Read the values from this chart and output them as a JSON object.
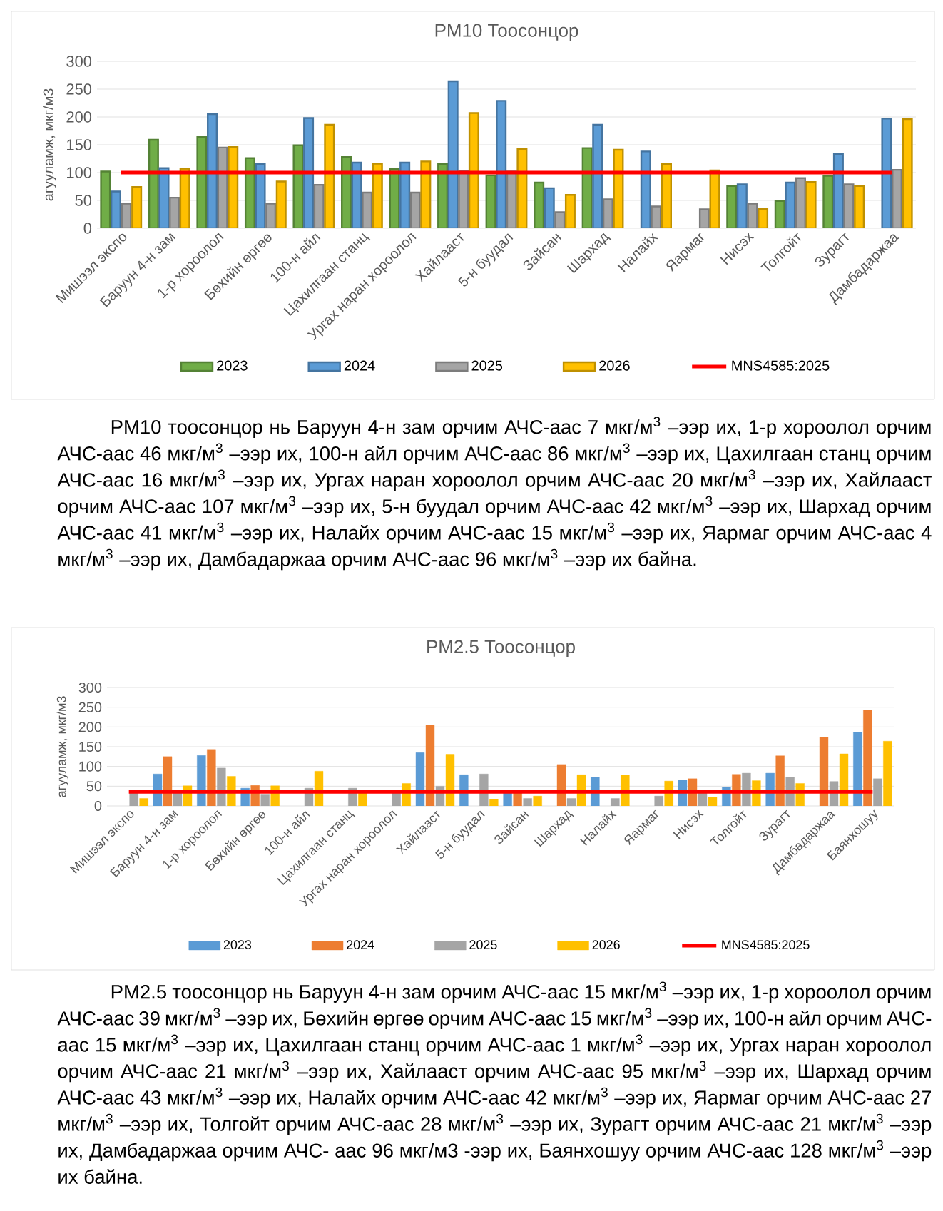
{
  "chart_data": [
    {
      "type": "bar",
      "title": "PM10 Тоосонцор",
      "ylabel": "агууламж, мкг/м3",
      "categories": [
        "Мишээл экспо",
        "Баруун 4-н зам",
        "1-р хороолол",
        "Бөхийн өргөө",
        "100-н айл",
        "Цахилгаан станц",
        "Ургах наран хороолол",
        "Хайлааст",
        "5-н буудал",
        "Зайсан",
        "Шархад",
        "Налайх",
        "Яармаг",
        "Нисэх",
        "Толгойт",
        "Зурагт",
        "Дамбадаржаа"
      ],
      "series": [
        {
          "name": "2023",
          "color": "#70ad47",
          "values": [
            102,
            159,
            164,
            126,
            149,
            128,
            106,
            115,
            95,
            82,
            144,
            null,
            null,
            76,
            49,
            94,
            null
          ]
        },
        {
          "name": "2024",
          "color": "#5b9bd5",
          "values": [
            66,
            108,
            205,
            115,
            198,
            118,
            118,
            264,
            229,
            72,
            186,
            138,
            null,
            79,
            82,
            133,
            197
          ]
        },
        {
          "name": "2025",
          "color": "#a5a5a5",
          "values": [
            44,
            55,
            145,
            44,
            78,
            64,
            64,
            103,
            102,
            29,
            52,
            39,
            34,
            44,
            90,
            79,
            105
          ]
        },
        {
          "name": "2026",
          "color": "#ffc000",
          "values": [
            74,
            107,
            146,
            84,
            186,
            116,
            120,
            207,
            142,
            60,
            141,
            115,
            104,
            35,
            83,
            76,
            196
          ]
        },
        {
          "name": "MNS4585:2025",
          "type": "line",
          "color": "#ff0000",
          "values": [
            100,
            100,
            100,
            100,
            100,
            100,
            100,
            100,
            100,
            100,
            100,
            100,
            100,
            100,
            100,
            100,
            100
          ]
        }
      ],
      "ylim": [
        0,
        300
      ],
      "yticks": [
        0,
        50,
        100,
        150,
        200,
        250,
        300
      ],
      "grid": "y",
      "legend": "bottom",
      "annotations": [
        "PM10 тоосонцор нь Баруун 4-н зам орчим АЧС-аас 7 мкг/м$^{3}$ –ээр их, 1-р хороолол орчим АЧС-аас 46 мкг/м$^{3}$ –ээр их, 100-н айл орчим АЧС-аас 86 мкг/м$^{3}$ –ээр их, Цахилгаан станц орчим АЧС-аас 16 мкг/м$^{3}$ –ээр их, Ургах наран хороолол орчим АЧС-аас 20 мкг/м$^{3}$ –ээр их, Хайлааст орчим АЧС-аас 107 мкг/м$^{3}$ –ээр их, 5-н буудал орчим АЧС-аас 42 мкг/м$^{3}$ –ээр их, Шархад орчим АЧС-аас 41 мкг/м$^{3}$ –ээр их, Налайх орчим АЧС-аас 15 мкг/м$^{3}$ –ээр их, Яармаг орчим АЧС-аас 4 мкг/м$^{3}$ –ээр их, Дамбадаржаа орчим АЧС-аас 96 мкг/м$^{3}$ –ээр их байна."
      ]
    },
    {
      "type": "bar",
      "title": "PM2.5 Тоосонцор",
      "ylabel": "агууламж, мкг/м3",
      "categories": [
        "Мишээл экспо",
        "Баруун 4-н зам",
        "1-р хороолол",
        "Бөхийн өргөө",
        "100-н айл",
        "Цахилгаан станц",
        "Ургах наран хороолол",
        "Хайлааст",
        "5-н буудал",
        "Зайсан",
        "Шархад",
        "Налайх",
        "Яармаг",
        "Нисэх",
        "Толгойт",
        "Зурагт",
        "Дамбадаржаа",
        "Баянхошуу"
      ],
      "series": [
        {
          "name": "2023",
          "color": "#5b9bd5",
          "values": [
            null,
            81,
            128,
            45,
            null,
            null,
            null,
            135,
            79,
            39,
            null,
            73,
            null,
            65,
            47,
            83,
            null,
            186
          ]
        },
        {
          "name": "2024",
          "color": "#ed7d31",
          "values": [
            null,
            125,
            143,
            52,
            null,
            null,
            null,
            204,
            null,
            39,
            105,
            null,
            null,
            69,
            80,
            127,
            174,
            243
          ]
        },
        {
          "name": "2025",
          "color": "#a5a5a5",
          "values": [
            37,
            37,
            96,
            28,
            45,
            45,
            37,
            50,
            81,
            19,
            19,
            19,
            25,
            33,
            83,
            73,
            62,
            69
          ]
        },
        {
          "name": "2026",
          "color": "#ffc000",
          "values": [
            19,
            51,
            75,
            51,
            88,
            37,
            57,
            131,
            17,
            25,
            79,
            78,
            63,
            22,
            64,
            57,
            132,
            164
          ]
        },
        {
          "name": "MNS4585:2025",
          "type": "line",
          "color": "#ff0000",
          "values": [
            36,
            36,
            36,
            36,
            36,
            36,
            36,
            36,
            36,
            36,
            36,
            36,
            36,
            36,
            36,
            36,
            36,
            36
          ]
        }
      ],
      "ylim": [
        0,
        300
      ],
      "yticks": [
        0,
        50,
        100,
        150,
        200,
        250,
        300
      ],
      "grid": "y",
      "legend": "bottom",
      "annotations": [
        "PM2.5 тоосонцор нь Баруун 4-н зам орчим АЧС-аас 15 мкг/м$^{3}$ –ээр их, 1-р хороолол орчим АЧС-аас 39 мкг/м$^{3}$ –ээр их, Бөхийн өргөө орчим АЧС-аас 15 мкг/м$^{3}$ –ээр их, 100-н айл орчим АЧС-аас 15 мкг/м$^{3}$ –ээр их, Цахилгаан станц орчим АЧС-аас 1 мкг/м$^{3}$ –ээр их, Ургах наран хороолол орчим АЧС-аас 21 мкг/м$^{3}$ –ээр их, Хайлааст орчим АЧС-аас 95 мкг/м$^{3}$ –ээр их, Шархад орчим АЧС-аас 43 мкг/м$^{3}$ –ээр их, Налайх орчим АЧС-аас 42 мкг/м$^{3}$ –ээр их, Яармаг орчим АЧС-аас 27 мкг/м$^{3}$ –ээр их, Толгойт орчим АЧС-аас 28 мкг/м$^{3}$ –ээр их, Зурагт орчим АЧС-аас 21 мкг/м$^{3}$ –ээр их, Дамбадаржаа орчим АЧС- аас 96 мкг/м3 -ээр их, Баянхошуу орчим АЧС-аас 128 мкг/м$^{3}$ –ээр их байна."
      ]
    }
  ]
}
